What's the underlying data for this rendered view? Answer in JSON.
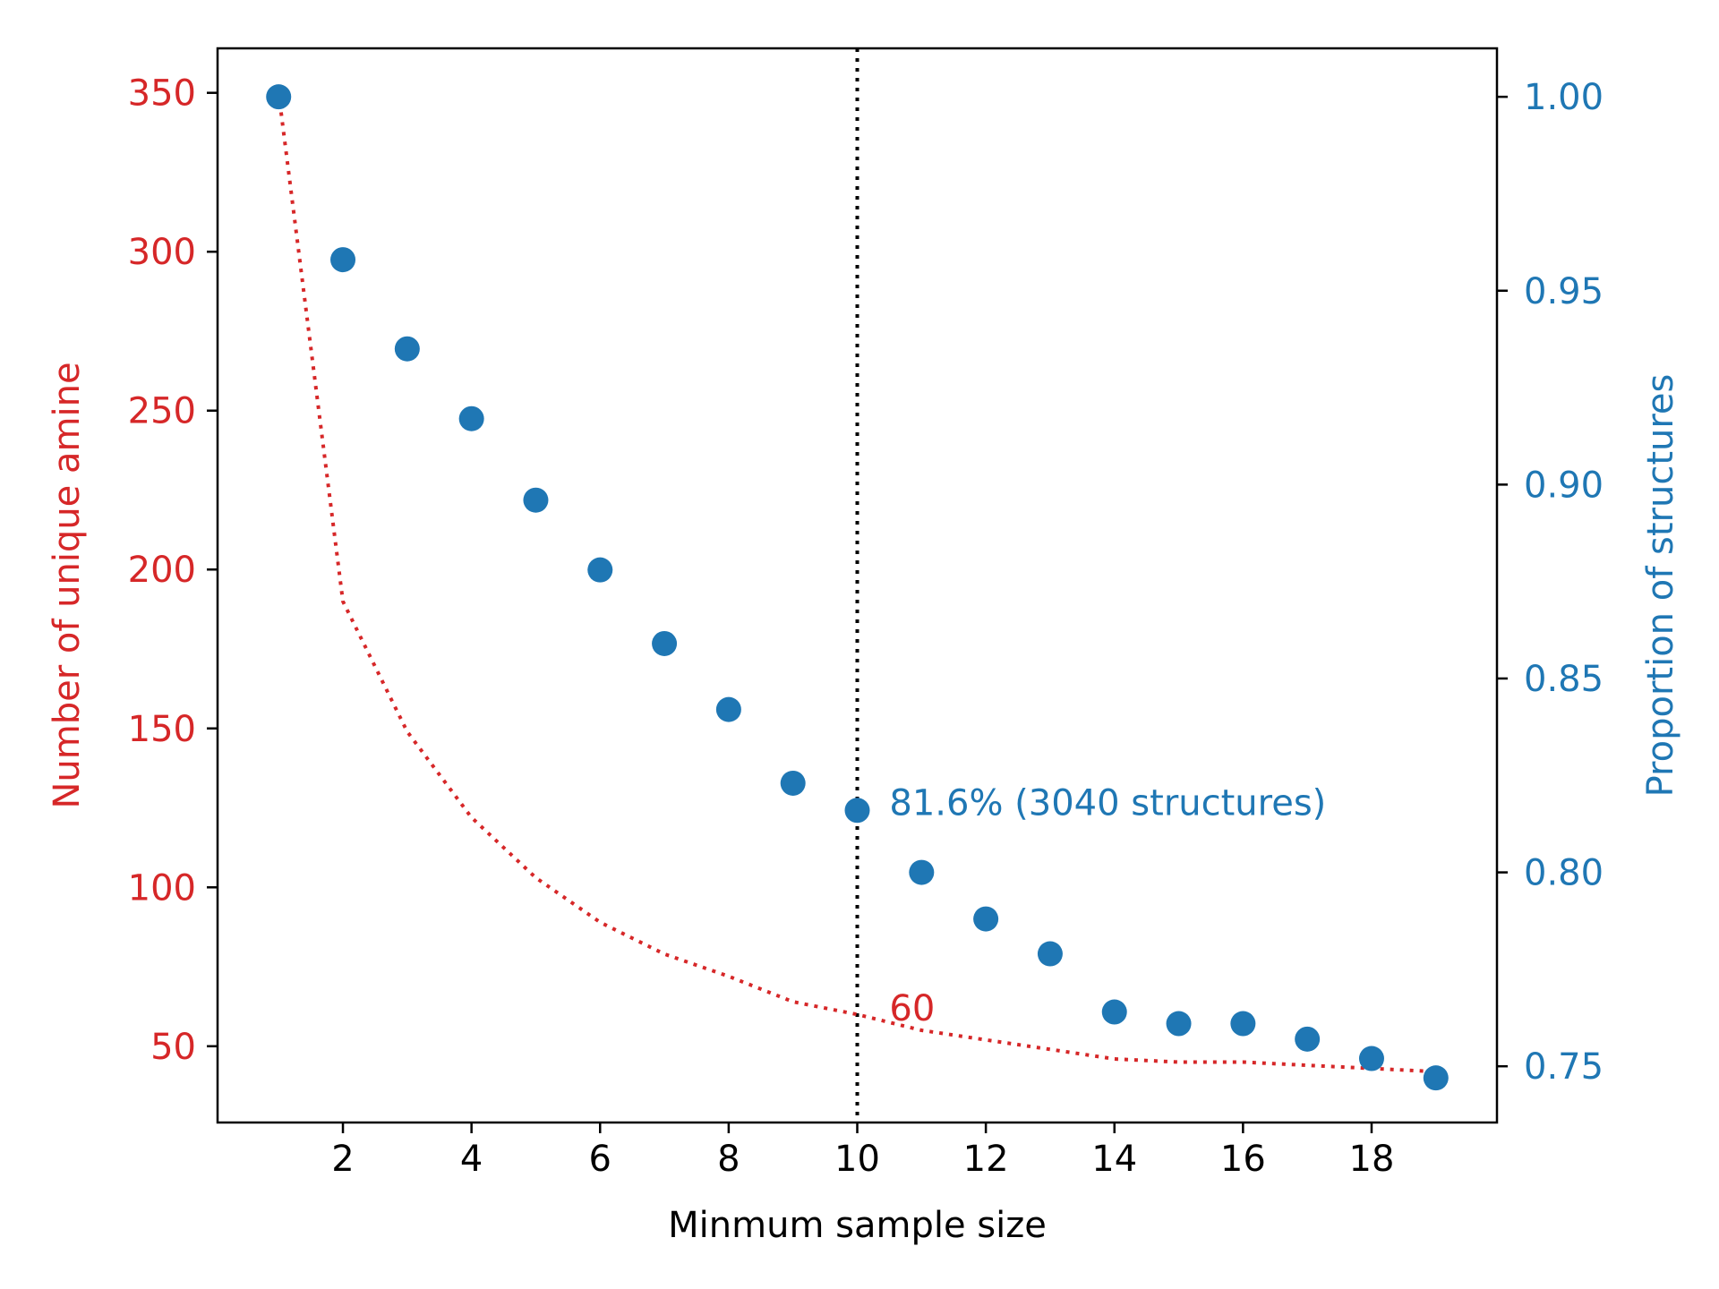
{
  "chart_data": {
    "type": "scatter",
    "xlabel": "Minmum sample size",
    "ylabel_left": "Number of unique amine",
    "ylabel_right": "Proportion of structures",
    "xlim": [
      0.05,
      19.95
    ],
    "ylim_left": [
      26,
      364
    ],
    "ylim_right": [
      0.7355,
      1.0125
    ],
    "x_ticks": [
      2,
      4,
      6,
      8,
      10,
      12,
      14,
      16,
      18
    ],
    "y_ticks_left": [
      50,
      100,
      150,
      200,
      250,
      300,
      350
    ],
    "y_ticks_right": [
      0.75,
      0.8,
      0.85,
      0.9,
      0.95,
      1.0
    ],
    "y_ticks_right_labels": [
      "0.75",
      "0.80",
      "0.85",
      "0.90",
      "0.95",
      "1.00"
    ],
    "colors": {
      "left_axis": "#d62728",
      "right_axis": "#1f77b4",
      "vline": "#000000"
    },
    "series": [
      {
        "axis": "left",
        "style": "dotted-line",
        "color": "#d62728",
        "x": [
          1,
          2,
          3,
          4,
          5,
          6,
          7,
          8,
          9,
          10,
          11,
          12,
          13,
          14,
          15,
          16,
          17,
          18,
          19
        ],
        "values": [
          350,
          190,
          149,
          122,
          103,
          89,
          79,
          72,
          64,
          60,
          55,
          52,
          49,
          46,
          45,
          45,
          44,
          43,
          42
        ]
      },
      {
        "axis": "right",
        "style": "markers",
        "color": "#1f77b4",
        "x": [
          1,
          2,
          3,
          4,
          5,
          6,
          7,
          8,
          9,
          10,
          11,
          12,
          13,
          14,
          15,
          16,
          17,
          18,
          19
        ],
        "values": [
          1.0,
          0.958,
          0.935,
          0.917,
          0.896,
          0.878,
          0.859,
          0.842,
          0.823,
          0.816,
          0.8,
          0.788,
          0.779,
          0.764,
          0.761,
          0.761,
          0.757,
          0.752,
          0.747
        ]
      }
    ],
    "vline_x": 10,
    "annotations": [
      {
        "text": "81.6% (3040 structures)",
        "x": 10.5,
        "y": 0.818,
        "axis": "right",
        "color": "#1f77b4"
      },
      {
        "text": "60",
        "x": 10.5,
        "y": 62,
        "axis": "left",
        "color": "#d62728"
      }
    ]
  }
}
